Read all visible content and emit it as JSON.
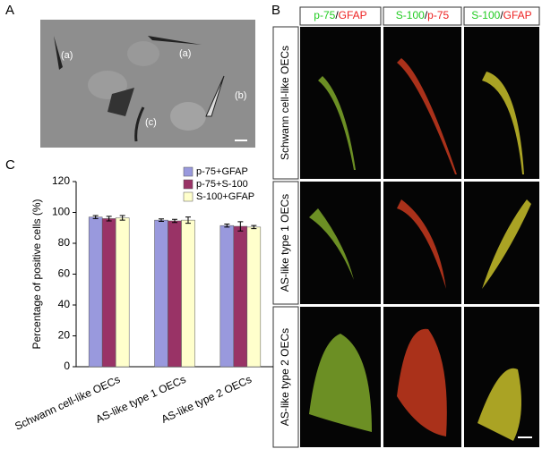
{
  "panels": {
    "a": "A",
    "b": "B",
    "c": "C"
  },
  "panel_a_labels": [
    "(a)",
    "(a)",
    "(b)",
    "(c)"
  ],
  "panel_b": {
    "columns": [
      [
        {
          "text": "p-75",
          "color": "#22cc22"
        },
        {
          "text": "/",
          "color": "#000000"
        },
        {
          "text": "GFAP",
          "color": "#ee2222"
        }
      ],
      [
        {
          "text": "S-100",
          "color": "#22cc22"
        },
        {
          "text": "/",
          "color": "#000000"
        },
        {
          "text": "p-75",
          "color": "#ee2222"
        }
      ],
      [
        {
          "text": "S-100",
          "color": "#22cc22"
        },
        {
          "text": "/",
          "color": "#000000"
        },
        {
          "text": "GFAP",
          "color": "#ee2222"
        }
      ]
    ],
    "rows": [
      "Schwann cell-like OECs",
      "AS-like type 1 OECs",
      "AS-like type 2 OECs"
    ]
  },
  "chart_data": {
    "type": "bar",
    "ylabel": "Percentage of positive cells (%)",
    "categories": [
      "Schwann cell-like OECs",
      "AS-like type 1 OECs",
      "AS-like type 2 OECs"
    ],
    "series": [
      {
        "name": "p-75+GFAP",
        "color": "#9999dd",
        "values": [
          97,
          95,
          91.5
        ],
        "errors": [
          1,
          0.8,
          1
        ]
      },
      {
        "name": "p-75+S-100",
        "color": "#993366",
        "values": [
          96,
          94.5,
          91
        ],
        "errors": [
          1.5,
          1,
          3
        ]
      },
      {
        "name": "S-100+GFAP",
        "color": "#ffffcc",
        "values": [
          96.5,
          95,
          90.5
        ],
        "errors": [
          1.5,
          2,
          1
        ]
      }
    ],
    "ylim": [
      0,
      120
    ],
    "yticks": [
      0,
      20,
      40,
      60,
      80,
      100,
      120
    ]
  }
}
